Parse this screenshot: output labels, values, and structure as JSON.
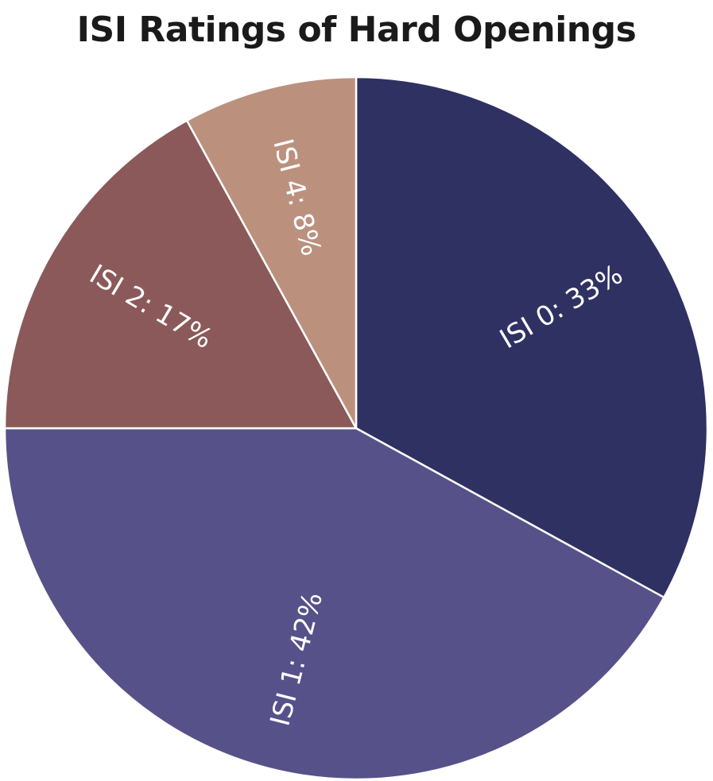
{
  "chart_data": {
    "type": "pie",
    "title": "ISI Ratings of Hard Openings",
    "start_angle_deg": 0,
    "direction": "clockwise",
    "slices": [
      {
        "label": "ISI 0: 33%",
        "category": "ISI 0",
        "value": 33,
        "color": "#2e3162"
      },
      {
        "label": "ISI 1: 42%",
        "category": "ISI 1",
        "value": 42,
        "color": "#57518a"
      },
      {
        "label": "ISI 2: 17%",
        "category": "ISI 2",
        "value": 17,
        "color": "#8b5959"
      },
      {
        "label": "ISI 4: 8%",
        "category": "ISI 4",
        "value": 8,
        "color": "#bb917e"
      }
    ],
    "legend": "none"
  }
}
